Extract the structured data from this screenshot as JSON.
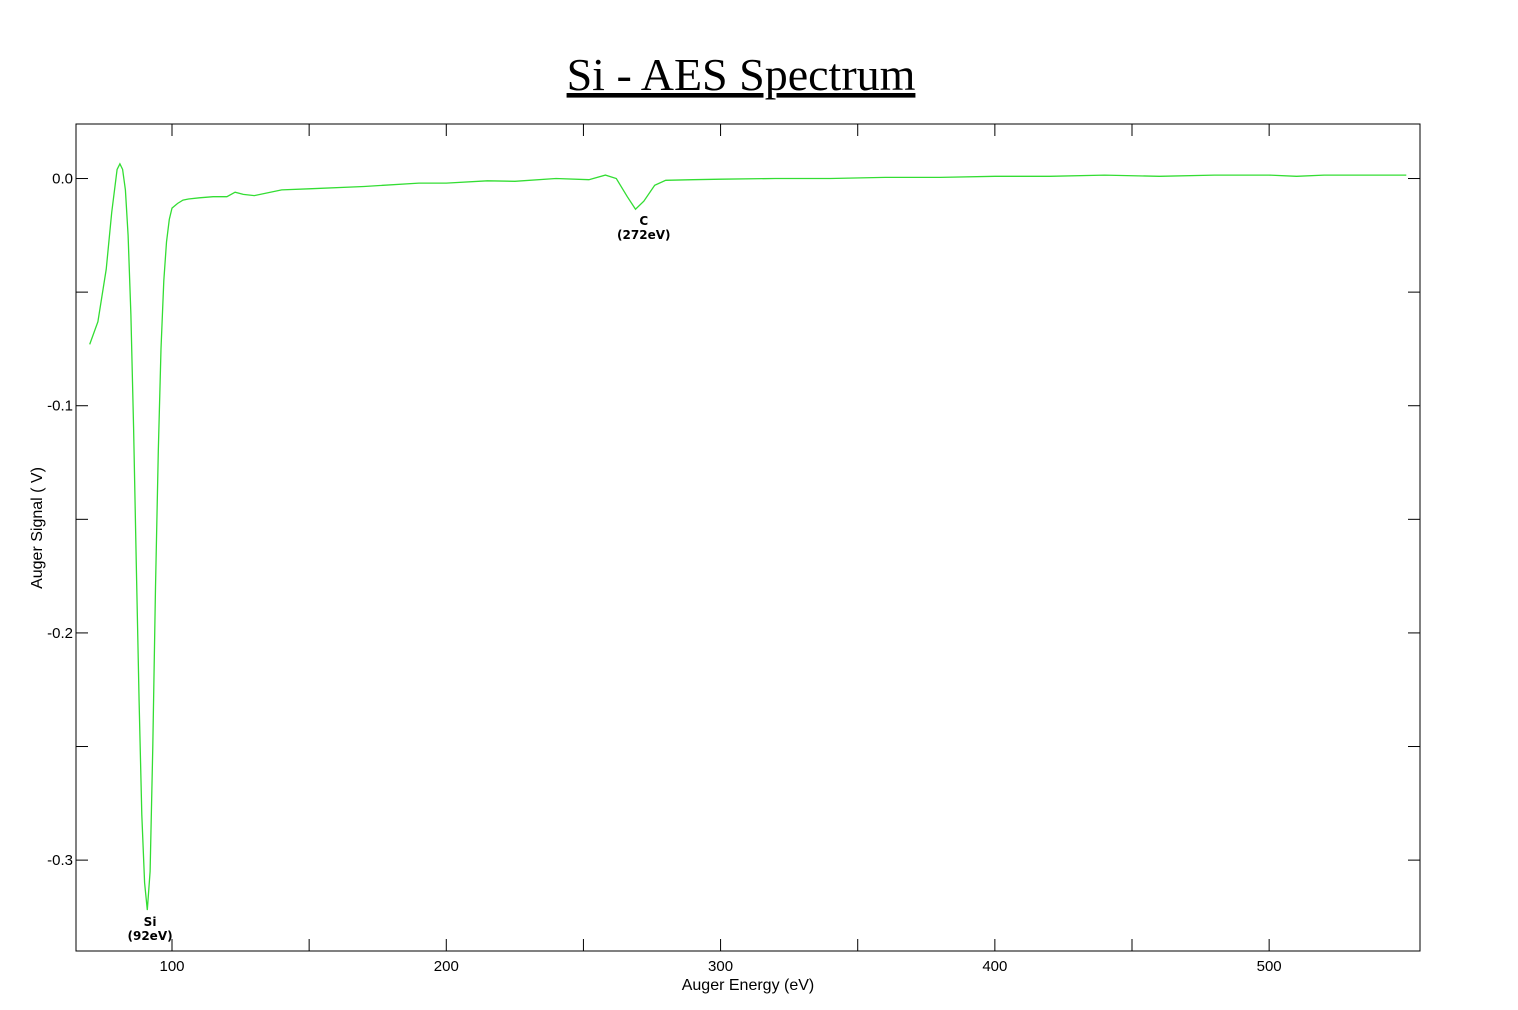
{
  "chart_data": {
    "type": "line",
    "title": "Si - AES Spectrum",
    "xlabel": "Auger Energy (eV)",
    "ylabel": "Auger Signal ( V)",
    "xlim": [
      65,
      555
    ],
    "ylim": [
      -0.34,
      0.024
    ],
    "xticks": [
      100,
      200,
      300,
      400,
      500
    ],
    "xtick_labels": [
      "100",
      "200",
      "300",
      "400",
      "500"
    ],
    "xminor": [
      150,
      250,
      350,
      450
    ],
    "yticks": [
      0.0,
      -0.1,
      -0.2,
      -0.3
    ],
    "ytick_labels": [
      "0.0",
      "-0.1",
      "-0.2",
      "-0.3"
    ],
    "yminor": [
      -0.05,
      -0.15,
      -0.25
    ],
    "grid": false,
    "line_color": "#33dd33",
    "series": [
      {
        "x": [
          70,
          73,
          76,
          78,
          80,
          81,
          82,
          83,
          84,
          85,
          86,
          87,
          88,
          89,
          90,
          91,
          92,
          93,
          94,
          95,
          96,
          97,
          98,
          99,
          100,
          102,
          104,
          106,
          110,
          115,
          120,
          123,
          126,
          130,
          140,
          150,
          170,
          190,
          200,
          215,
          225,
          240,
          252,
          258,
          262,
          266,
          269,
          272,
          276,
          280,
          290,
          300,
          320,
          340,
          360,
          380,
          400,
          420,
          440,
          460,
          480,
          490,
          500,
          510,
          520,
          530,
          540,
          550
        ],
        "y": [
          -0.073,
          -0.063,
          -0.04,
          -0.015,
          0.004,
          0.0065,
          0.004,
          -0.005,
          -0.025,
          -0.06,
          -0.11,
          -0.17,
          -0.23,
          -0.28,
          -0.31,
          -0.322,
          -0.305,
          -0.25,
          -0.18,
          -0.12,
          -0.075,
          -0.045,
          -0.028,
          -0.018,
          -0.013,
          -0.011,
          -0.0095,
          -0.009,
          -0.0085,
          -0.008,
          -0.008,
          -0.006,
          -0.007,
          -0.0075,
          -0.005,
          -0.0045,
          -0.0035,
          -0.002,
          -0.002,
          -0.001,
          -0.0012,
          0.0,
          -0.0005,
          0.0015,
          0.0,
          -0.008,
          -0.0135,
          -0.01,
          -0.003,
          -0.0008,
          -0.0005,
          -0.0003,
          0.0,
          0.0,
          0.0005,
          0.0005,
          0.001,
          0.001,
          0.0015,
          0.001,
          0.0015,
          0.0015,
          0.0015,
          0.001,
          0.0015,
          0.0015,
          0.0015,
          0.0015
        ]
      }
    ],
    "annotations": [
      {
        "label": "Si",
        "sub": "(92eV)",
        "x": 92,
        "y": -0.322
      },
      {
        "label": "C",
        "sub": "(272eV)",
        "x": 272,
        "y": -0.0135
      }
    ]
  }
}
